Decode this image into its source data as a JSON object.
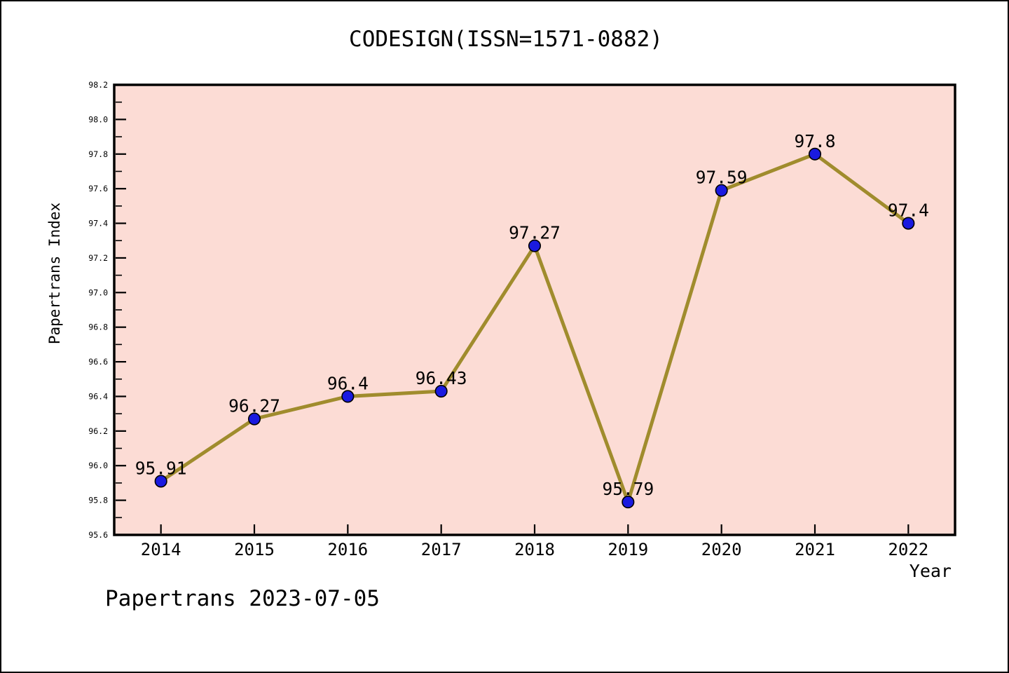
{
  "title": "CODESIGN(ISSN=1571-0882)",
  "footer": "Papertrans 2023-07-05",
  "chart_data": {
    "type": "line",
    "title": "CODESIGN(ISSN=1571-0882)",
    "xlabel": "Year",
    "ylabel": "Papertrans Index",
    "categories": [
      2014,
      2015,
      2016,
      2017,
      2018,
      2019,
      2020,
      2021,
      2022
    ],
    "values": [
      95.91,
      96.27,
      96.4,
      96.43,
      97.27,
      95.79,
      97.59,
      97.8,
      97.4
    ],
    "point_labels": [
      "95.91",
      "96.27",
      "96.4",
      "96.43",
      "97.27",
      "95.79",
      "97.59",
      "97.8",
      "97.4"
    ],
    "xlim": [
      2013.5,
      2022.5
    ],
    "ylim": [
      95.6,
      98.2
    ],
    "y_major_step": 0.2,
    "y_minor_step": 0.1,
    "grid": false,
    "legend_position": "none",
    "colors": {
      "plot_bg": "#fcdcd5",
      "line": "#a08c2d",
      "marker_fill": "#1a1ae0",
      "marker_edge": "#000000",
      "axis": "#000000",
      "text": "#000000",
      "page_bg": "#ffffff"
    }
  }
}
